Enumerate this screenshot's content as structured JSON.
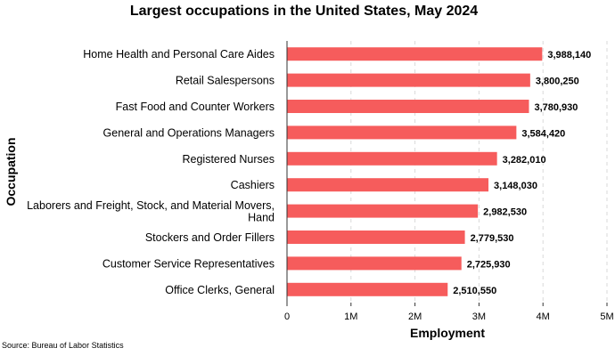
{
  "chart_data": {
    "type": "bar",
    "orientation": "horizontal",
    "title": "Largest occupations in the United States, May 2024",
    "xlabel": "Employment",
    "ylabel": "Occupation",
    "xlim": [
      0,
      5000000
    ],
    "x_ticks": [
      {
        "value": 0,
        "label": "0"
      },
      {
        "value": 1000000,
        "label": "1M"
      },
      {
        "value": 2000000,
        "label": "2M"
      },
      {
        "value": 3000000,
        "label": "3M"
      },
      {
        "value": 4000000,
        "label": "4M"
      },
      {
        "value": 5000000,
        "label": "5M"
      }
    ],
    "grid": "vertical-dashed",
    "bar_color": "#f65c5c",
    "categories": [
      [
        "Home Health and Personal Care Aides"
      ],
      [
        "Retail Salespersons"
      ],
      [
        "Fast Food and Counter Workers"
      ],
      [
        "General and Operations Managers"
      ],
      [
        "Registered Nurses"
      ],
      [
        "Cashiers"
      ],
      [
        "Laborers and Freight, Stock, and Material Movers,",
        "Hand"
      ],
      [
        "Stockers and Order Fillers"
      ],
      [
        "Customer Service Representatives"
      ],
      [
        "Office Clerks, General"
      ]
    ],
    "values": [
      3988140,
      3800250,
      3780930,
      3584420,
      3282010,
      3148030,
      2982530,
      2779530,
      2725930,
      2510550
    ],
    "value_labels": [
      "3,988,140",
      "3,800,250",
      "3,780,930",
      "3,584,420",
      "3,282,010",
      "3,148,030",
      "2,982,530",
      "2,779,530",
      "2,725,930",
      "2,510,550"
    ],
    "source": "Source: Bureau of Labor Statistics"
  }
}
